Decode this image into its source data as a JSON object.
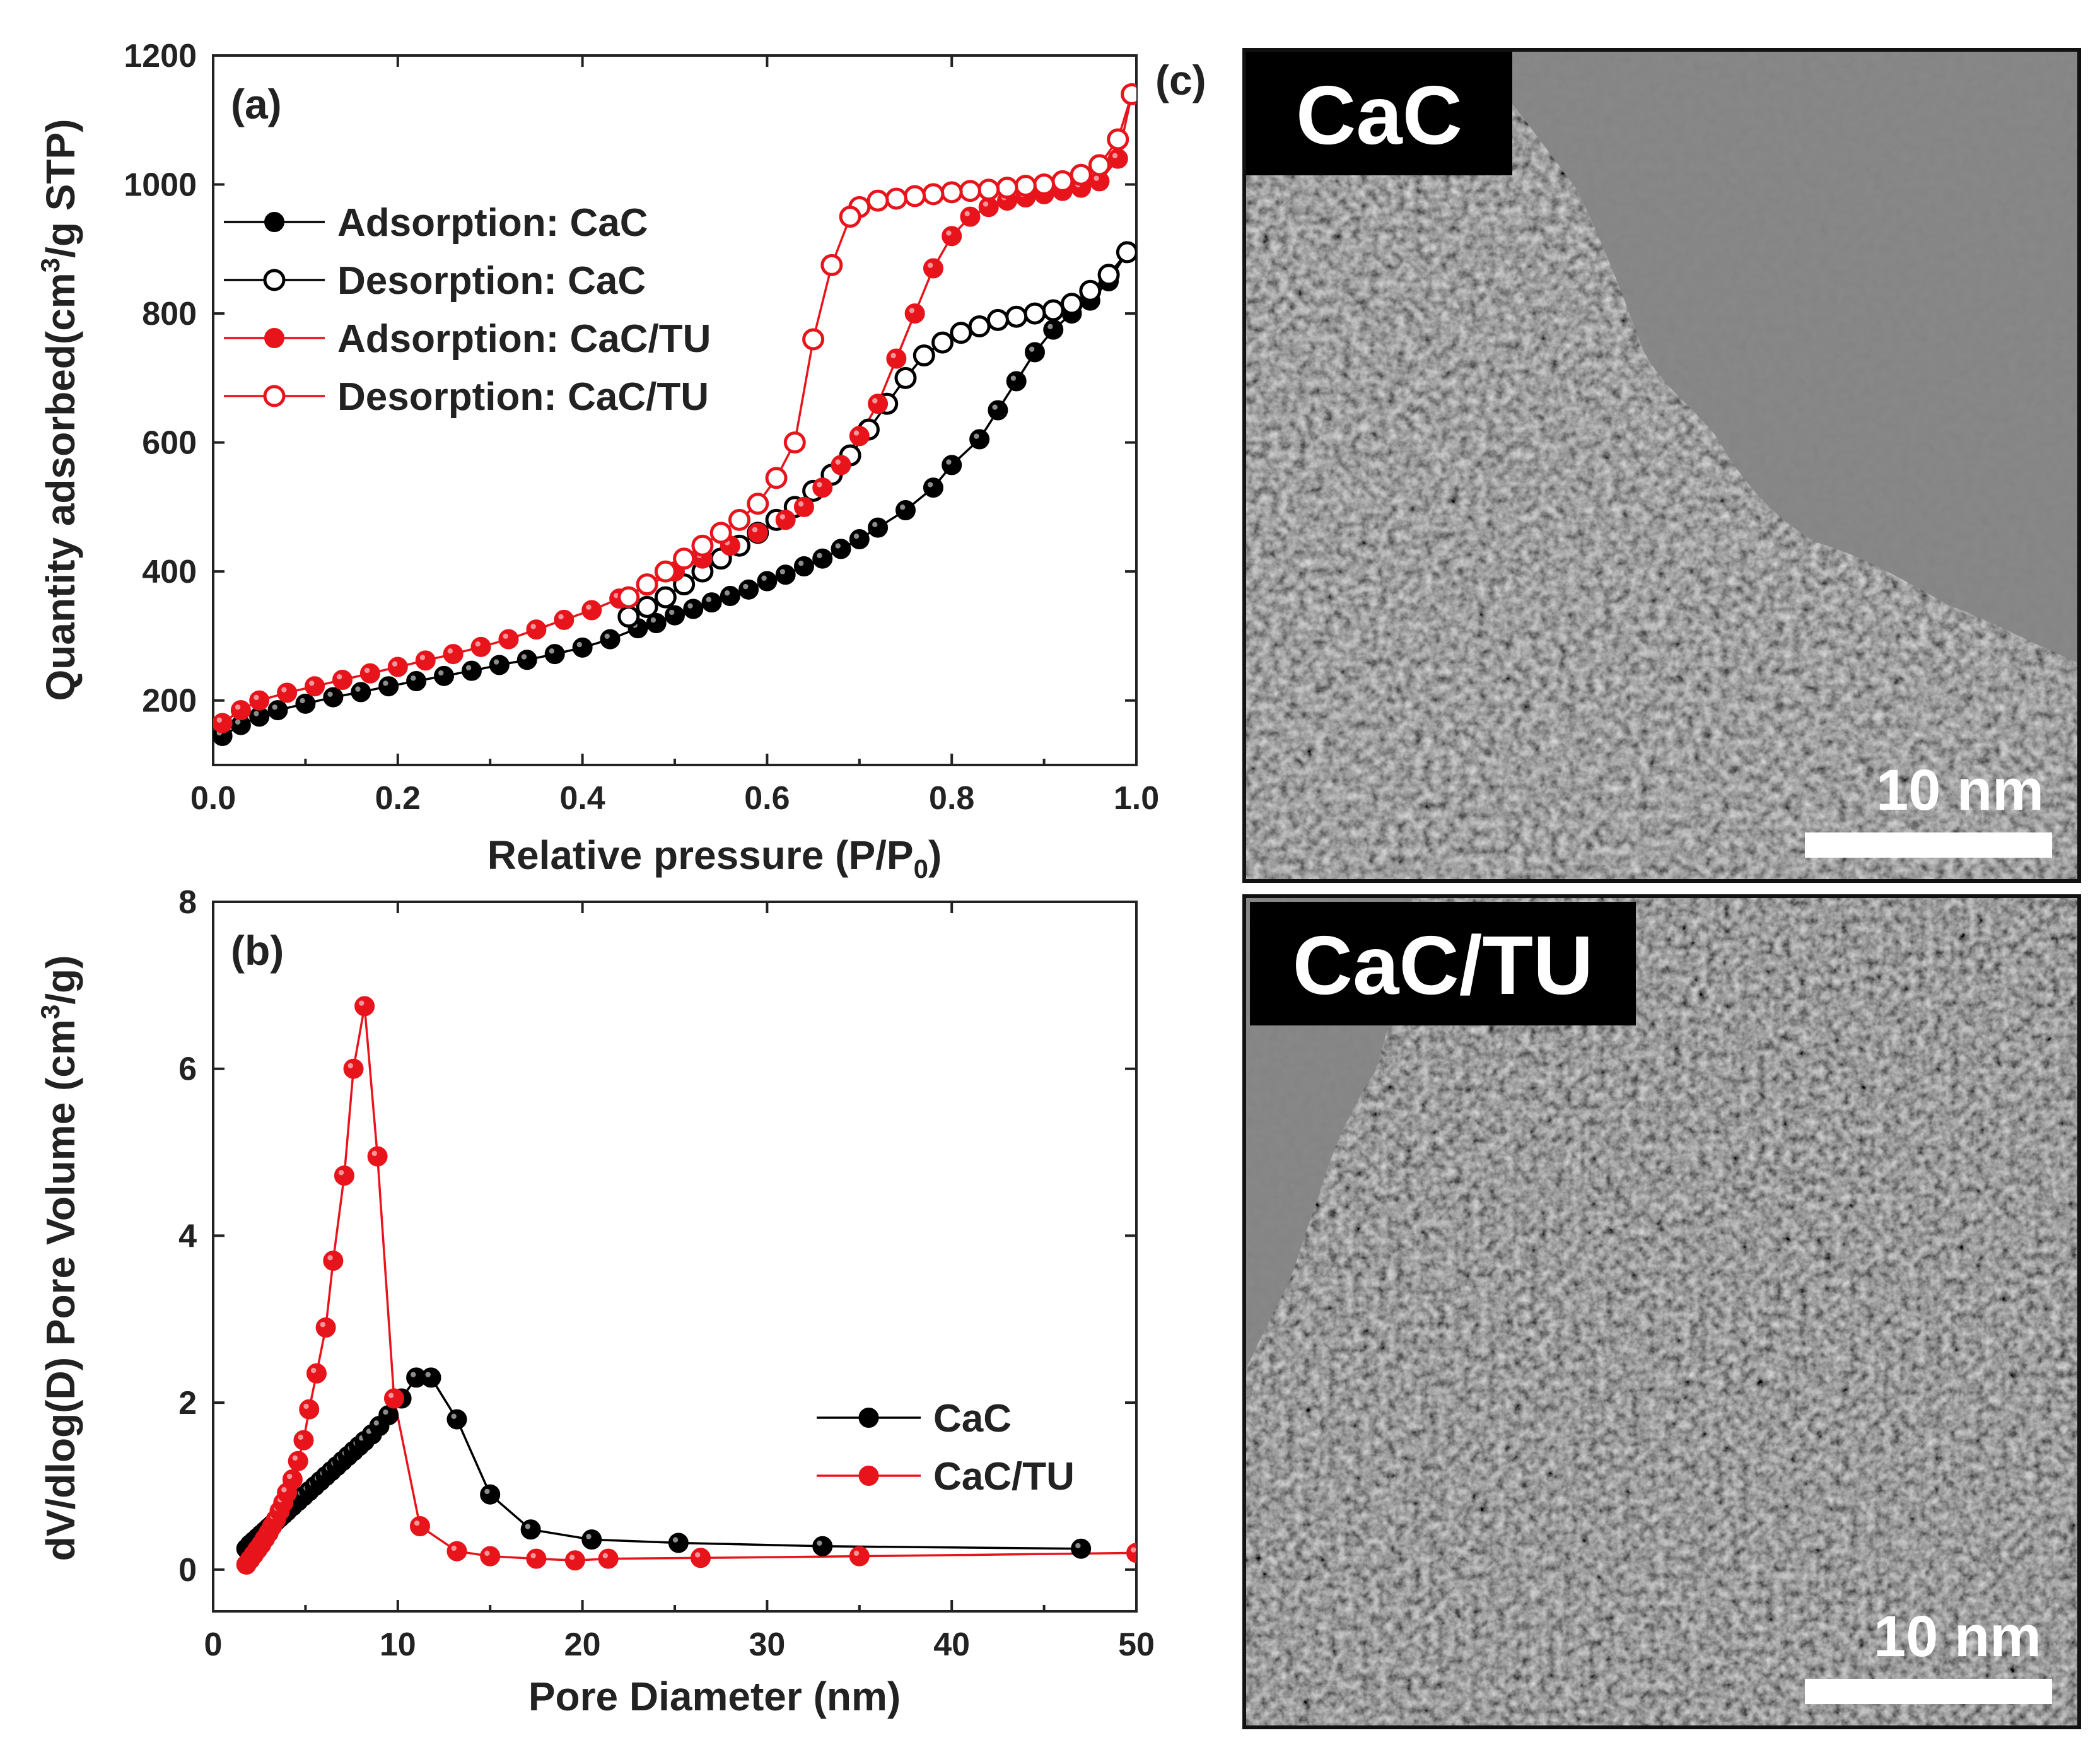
{
  "chart_data": [
    {
      "panel": "(a)",
      "type": "scatter",
      "title": "",
      "xlabel": "Relative pressure (P/P0)",
      "ylabel": "Quantity adsorbed(cm3/g STP)",
      "xlim": [
        0.0,
        1.0
      ],
      "ylim": [
        100,
        1200
      ],
      "xticks": [
        "0.0",
        "0.2",
        "0.4",
        "0.6",
        "0.8",
        "1.0"
      ],
      "yticks": [
        "200",
        "400",
        "600",
        "800",
        "1000",
        "1200"
      ],
      "legend_position": "top-left",
      "series": [
        {
          "name": "Adsorption: CaC",
          "color": "#000000",
          "filled": true,
          "x": [
            0.01,
            0.03,
            0.05,
            0.07,
            0.1,
            0.13,
            0.16,
            0.19,
            0.22,
            0.25,
            0.28,
            0.31,
            0.34,
            0.37,
            0.4,
            0.43,
            0.46,
            0.48,
            0.5,
            0.52,
            0.54,
            0.56,
            0.58,
            0.6,
            0.62,
            0.64,
            0.66,
            0.68,
            0.7,
            0.72,
            0.75,
            0.78,
            0.8,
            0.83,
            0.85,
            0.87,
            0.89,
            0.91,
            0.93,
            0.95,
            0.97,
            0.99
          ],
          "y": [
            145,
            162,
            175,
            185,
            195,
            205,
            213,
            222,
            230,
            238,
            246,
            255,
            263,
            272,
            282,
            295,
            312,
            320,
            332,
            342,
            352,
            362,
            372,
            385,
            395,
            408,
            420,
            435,
            450,
            468,
            495,
            530,
            565,
            605,
            650,
            695,
            740,
            775,
            800,
            820,
            850,
            895
          ]
        },
        {
          "name": "Desorption: CaC",
          "color": "#000000",
          "filled": false,
          "x": [
            0.99,
            0.97,
            0.95,
            0.93,
            0.91,
            0.89,
            0.87,
            0.85,
            0.83,
            0.81,
            0.79,
            0.77,
            0.75,
            0.73,
            0.71,
            0.69,
            0.67,
            0.65,
            0.63,
            0.61,
            0.59,
            0.57,
            0.55,
            0.53,
            0.51,
            0.49,
            0.47,
            0.45
          ],
          "y": [
            895,
            860,
            835,
            815,
            805,
            800,
            795,
            790,
            780,
            770,
            755,
            735,
            700,
            660,
            620,
            580,
            550,
            525,
            500,
            480,
            460,
            440,
            420,
            400,
            380,
            360,
            345,
            330
          ]
        },
        {
          "name": "Adsorption: CaC/TU",
          "color": "#e8141b",
          "filled": true,
          "x": [
            0.01,
            0.03,
            0.05,
            0.08,
            0.11,
            0.14,
            0.17,
            0.2,
            0.23,
            0.26,
            0.29,
            0.32,
            0.35,
            0.38,
            0.41,
            0.44,
            0.47,
            0.5,
            0.53,
            0.56,
            0.59,
            0.62,
            0.64,
            0.66,
            0.68,
            0.7,
            0.72,
            0.74,
            0.76,
            0.78,
            0.8,
            0.82,
            0.84,
            0.86,
            0.88,
            0.9,
            0.92,
            0.94,
            0.96,
            0.98,
            0.995
          ],
          "y": [
            165,
            185,
            200,
            212,
            222,
            232,
            242,
            252,
            262,
            272,
            283,
            295,
            310,
            325,
            340,
            358,
            378,
            400,
            420,
            440,
            460,
            480,
            500,
            530,
            565,
            610,
            660,
            730,
            800,
            870,
            920,
            950,
            965,
            975,
            980,
            985,
            990,
            995,
            1005,
            1040,
            1140
          ]
        },
        {
          "name": "Desorption: CaC/TU",
          "color": "#e8141b",
          "filled": false,
          "x": [
            0.995,
            0.98,
            0.96,
            0.94,
            0.92,
            0.9,
            0.88,
            0.86,
            0.84,
            0.82,
            0.8,
            0.78,
            0.76,
            0.74,
            0.72,
            0.7,
            0.69,
            0.67,
            0.65,
            0.63,
            0.61,
            0.59,
            0.57,
            0.55,
            0.53,
            0.51,
            0.49,
            0.47,
            0.45
          ],
          "y": [
            1140,
            1070,
            1030,
            1015,
            1005,
            1000,
            998,
            995,
            992,
            990,
            988,
            985,
            982,
            978,
            975,
            965,
            950,
            875,
            760,
            600,
            545,
            505,
            480,
            460,
            440,
            420,
            400,
            380,
            360
          ]
        }
      ]
    },
    {
      "panel": "(b)",
      "type": "line",
      "title": "",
      "xlabel": "Pore Diameter (nm)",
      "ylabel": "dV/dlog(D) Pore Volume (cm3/g)",
      "xlim": [
        0,
        50
      ],
      "ylim": [
        -0.5,
        8
      ],
      "xticks": [
        "0",
        "10",
        "20",
        "30",
        "40",
        "50"
      ],
      "yticks": [
        "0",
        "2",
        "4",
        "6",
        "8"
      ],
      "legend_position": "center-right",
      "series": [
        {
          "name": "CaC",
          "color": "#000000",
          "x": [
            1.8,
            2.0,
            2.2,
            2.4,
            2.6,
            2.8,
            3.0,
            3.2,
            3.4,
            3.6,
            3.8,
            4.0,
            4.3,
            4.6,
            4.9,
            5.2,
            5.5,
            5.8,
            6.1,
            6.4,
            6.7,
            7.0,
            7.3,
            7.6,
            7.9,
            8.2,
            8.6,
            9.0,
            9.5,
            10.2,
            11.0,
            11.8,
            13.2,
            15.0,
            17.2,
            20.5,
            25.2,
            33.0,
            47.0
          ],
          "y": [
            0.25,
            0.3,
            0.34,
            0.38,
            0.42,
            0.46,
            0.5,
            0.54,
            0.58,
            0.62,
            0.66,
            0.7,
            0.76,
            0.82,
            0.88,
            0.94,
            1.0,
            1.06,
            1.12,
            1.18,
            1.24,
            1.3,
            1.36,
            1.42,
            1.48,
            1.54,
            1.62,
            1.72,
            1.85,
            2.05,
            2.3,
            2.3,
            1.8,
            0.9,
            0.48,
            0.36,
            0.32,
            0.28,
            0.25
          ]
        },
        {
          "name": "CaC/TU",
          "color": "#e8141b",
          "x": [
            1.8,
            2.0,
            2.2,
            2.4,
            2.6,
            2.8,
            3.0,
            3.2,
            3.4,
            3.6,
            3.8,
            4.0,
            4.3,
            4.6,
            4.9,
            5.2,
            5.6,
            6.1,
            6.5,
            7.1,
            7.6,
            8.2,
            8.9,
            9.8,
            11.2,
            13.2,
            15.0,
            17.5,
            19.6,
            21.4,
            26.4,
            35.0,
            50.0
          ],
          "y": [
            0.06,
            0.12,
            0.18,
            0.24,
            0.3,
            0.37,
            0.44,
            0.52,
            0.6,
            0.7,
            0.8,
            0.92,
            1.08,
            1.3,
            1.55,
            1.92,
            2.35,
            2.9,
            3.7,
            4.72,
            6.0,
            6.75,
            4.95,
            2.05,
            0.52,
            0.22,
            0.16,
            0.13,
            0.11,
            0.13,
            0.14,
            0.16,
            0.2
          ]
        }
      ]
    }
  ],
  "panel_c": {
    "panel_label": "(c)",
    "images": [
      {
        "label": "CaC",
        "scale_bar": "10 nm"
      },
      {
        "label": "CaC/TU",
        "scale_bar": "10 nm"
      }
    ]
  }
}
